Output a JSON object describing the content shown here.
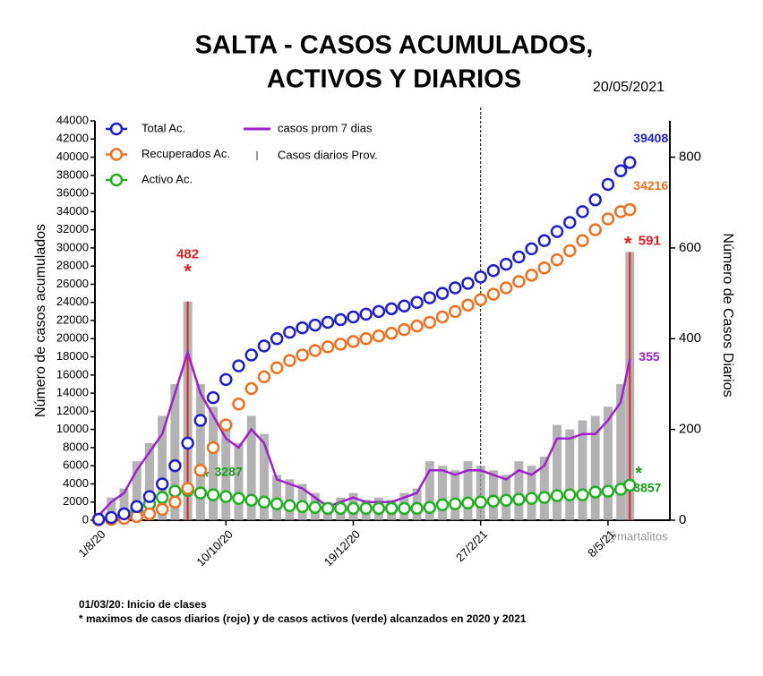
{
  "chart_data": {
    "type": "combo",
    "title": [
      "SALTA - CASOS ACUMULADOS,",
      "ACTIVOS Y DIARIOS"
    ],
    "date": "20/05/2021",
    "ylabel": "Número de casos acumulados",
    "y2label": "Número de Casos Diarios",
    "watermark": "@martalitos",
    "footnotes": [
      "01/03/20: Inicio de clases",
      "* maximos de casos diarios (rojo) y de  casos activos (verde) alcanzados en 2020 y 2021"
    ],
    "max_marker": "*",
    "max_colors": {
      "bar": "#e02020",
      "active": "#1a9a1a"
    },
    "reference_line": "27/2/21",
    "legend": "upper left",
    "grid": false,
    "xlim": [
      "30/7/20",
      "11/6/21"
    ],
    "xticks": [
      "1/8/20",
      "10/10/20",
      "19/12/20",
      "27/2/21",
      "8/5/21"
    ],
    "ylim": [
      0,
      44000
    ],
    "yticks": [
      0,
      2000,
      4000,
      6000,
      8000,
      10000,
      12000,
      14000,
      16000,
      18000,
      20000,
      22000,
      24000,
      26000,
      28000,
      30000,
      32000,
      34000,
      36000,
      38000,
      40000,
      42000,
      44000
    ],
    "y2lim": [
      0,
      880
    ],
    "y2ticks": [
      0,
      200,
      400,
      600,
      800
    ],
    "x": [
      "1/8/20",
      "8/8/20",
      "15/8/20",
      "22/8/20",
      "29/8/20",
      "5/9/20",
      "12/9/20",
      "19/9/20",
      "26/9/20",
      "3/10/20",
      "10/10/20",
      "17/10/20",
      "24/10/20",
      "31/10/20",
      "7/11/20",
      "14/11/20",
      "21/11/20",
      "28/11/20",
      "5/12/20",
      "12/12/20",
      "19/12/20",
      "26/12/20",
      "2/1/21",
      "9/1/21",
      "16/1/21",
      "23/1/21",
      "30/1/21",
      "6/2/21",
      "13/2/21",
      "20/2/21",
      "27/2/21",
      "6/3/21",
      "13/3/21",
      "20/3/21",
      "27/3/21",
      "3/4/21",
      "10/4/21",
      "17/4/21",
      "24/4/21",
      "1/5/21",
      "8/5/21",
      "15/5/21",
      "20/5/21"
    ],
    "series": [
      {
        "name": "Casos diarios Prov.",
        "type": "bar",
        "axis": "y2",
        "color": "#9a9a9a",
        "values": [
          15,
          50,
          70,
          130,
          170,
          230,
          300,
          482,
          300,
          250,
          200,
          170,
          230,
          190,
          100,
          90,
          80,
          60,
          40,
          50,
          60,
          45,
          50,
          45,
          60,
          70,
          130,
          120,
          110,
          130,
          120,
          110,
          100,
          130,
          120,
          140,
          210,
          200,
          220,
          230,
          250,
          300,
          591
        ]
      },
      {
        "name": "casos prom 7 dias",
        "type": "line",
        "axis": "y2",
        "color": "#a020d0",
        "values": [
          10,
          40,
          60,
          110,
          150,
          190,
          280,
          370,
          280,
          230,
          180,
          160,
          200,
          170,
          90,
          80,
          70,
          50,
          30,
          40,
          50,
          40,
          40,
          40,
          50,
          60,
          110,
          110,
          100,
          110,
          110,
          100,
          90,
          110,
          100,
          120,
          180,
          180,
          190,
          190,
          220,
          260,
          355
        ]
      },
      {
        "name": "Activo Ac.",
        "type": "scatter",
        "role": "active",
        "color": "#22b022",
        "values": [
          50,
          200,
          500,
          1100,
          1800,
          2500,
          3200,
          3287,
          3000,
          2800,
          2600,
          2400,
          2200,
          2000,
          1800,
          1600,
          1500,
          1400,
          1300,
          1300,
          1300,
          1300,
          1300,
          1300,
          1300,
          1300,
          1400,
          1700,
          1800,
          1900,
          2000,
          2100,
          2200,
          2300,
          2400,
          2500,
          2700,
          2800,
          2800,
          3100,
          3200,
          3400,
          3857
        ]
      },
      {
        "name": "Recuperados Ac.",
        "type": "scatter",
        "color": "#f07020",
        "values": [
          50,
          100,
          200,
          400,
          700,
          1200,
          2000,
          3500,
          5500,
          8000,
          10500,
          12800,
          14500,
          15800,
          16800,
          17600,
          18200,
          18700,
          19100,
          19400,
          19700,
          20000,
          20300,
          20600,
          21000,
          21400,
          21800,
          22400,
          23000,
          23700,
          24300,
          24900,
          25600,
          26300,
          27000,
          27800,
          28700,
          29700,
          30800,
          32000,
          33200,
          34000,
          34216
        ]
      },
      {
        "name": "Total Ac.",
        "type": "scatter",
        "color": "#1f1fd0",
        "values": [
          100,
          300,
          700,
          1500,
          2600,
          4000,
          6000,
          8500,
          11000,
          13500,
          15500,
          17000,
          18200,
          19200,
          20000,
          20700,
          21200,
          21500,
          21800,
          22100,
          22400,
          22700,
          23000,
          23300,
          23600,
          24000,
          24500,
          25000,
          25600,
          26100,
          26800,
          27500,
          28200,
          29000,
          29900,
          30800,
          31800,
          32800,
          34000,
          35300,
          37000,
          38500,
          39408
        ]
      }
    ]
  }
}
